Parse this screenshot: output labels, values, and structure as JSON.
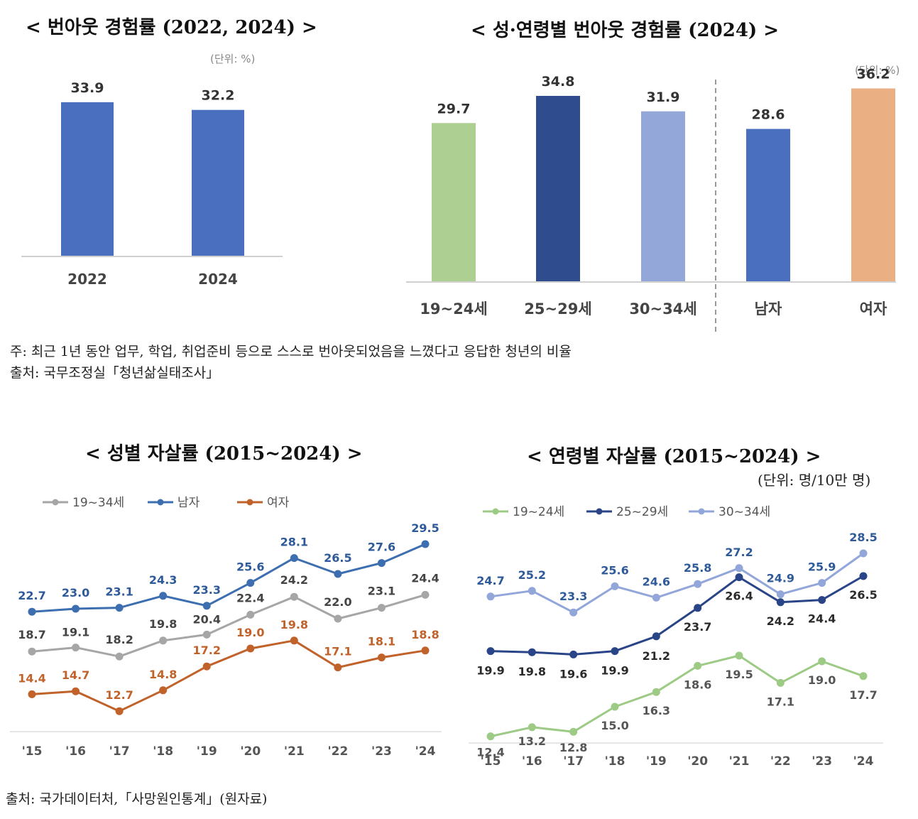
{
  "charts": [
    {
      "title": "< 번아웃 경험률 (2022, 2024) >",
      "unit": "(단위: %)",
      "chart_data": {
        "type": "bar",
        "categories": [
          "2022",
          "2024"
        ],
        "values": [
          33.9,
          32.2
        ],
        "colors": [
          "#4A6FBF",
          "#4A6FBF"
        ],
        "ylim": [
          0,
          40
        ]
      }
    },
    {
      "title": "< 성·연령별 번아웃 경험률 (2024) >",
      "unit": "(단위: %)",
      "chart_data": {
        "type": "bar",
        "categories": [
          "19~24세",
          "25~29세",
          "30~34세",
          "남자",
          "여자"
        ],
        "values": [
          29.7,
          34.8,
          31.9,
          28.6,
          36.2
        ],
        "colors": [
          "#ADCF92",
          "#2F4D8E",
          "#93A8D8",
          "#4A6FBF",
          "#EBAF84"
        ],
        "ylim": [
          0,
          40
        ]
      }
    },
    {
      "title": "< 성별 자살률 (2015~2024) >",
      "chart_data": {
        "type": "line",
        "categories": [
          "'15",
          "'16",
          "'17",
          "'18",
          "'19",
          "'20",
          "'21",
          "'22",
          "'23",
          "'24"
        ],
        "ylim": [
          10,
          31
        ],
        "legend_position": "top-left",
        "series": [
          {
            "name": "19~34세",
            "color": "#A6A6A6",
            "label_color": "#444444",
            "values": [
              18.7,
              19.1,
              18.2,
              19.8,
              20.4,
              22.4,
              24.2,
              22.0,
              23.1,
              24.4
            ]
          },
          {
            "name": "남자",
            "color": "#3D6EB0",
            "label_color": "#2E5A9A",
            "values": [
              22.7,
              23.0,
              23.1,
              24.3,
              23.3,
              25.6,
              28.1,
              26.5,
              27.6,
              29.5
            ]
          },
          {
            "name": "여자",
            "color": "#C0622A",
            "label_color": "#C0622A",
            "values": [
              14.4,
              14.7,
              12.7,
              14.8,
              17.2,
              19.0,
              19.8,
              17.1,
              18.1,
              18.8
            ]
          }
        ]
      }
    },
    {
      "title": "< 연령별 자살률 (2015~2024) >",
      "unit": "(단위: 명/10만 명)",
      "chart_data": {
        "type": "line",
        "categories": [
          "'15",
          "'16",
          "'17",
          "'18",
          "'19",
          "'20",
          "'21",
          "'22",
          "'23",
          "'24"
        ],
        "ylim": [
          10,
          30
        ],
        "legend_position": "top-left",
        "series": [
          {
            "name": "19~24세",
            "color": "#9DCB85",
            "label_color": "#555555",
            "values": [
              12.4,
              13.2,
              12.8,
              15.0,
              16.3,
              18.6,
              19.5,
              17.1,
              19.0,
              17.7
            ]
          },
          {
            "name": "25~29세",
            "color": "#2A4488",
            "label_color": "#2A2A2A",
            "values": [
              19.9,
              19.8,
              19.6,
              19.9,
              21.2,
              23.7,
              26.4,
              24.2,
              24.4,
              26.5
            ]
          },
          {
            "name": "30~34세",
            "color": "#92A6DA",
            "label_color": "#2E5A9A",
            "values": [
              24.7,
              25.2,
              23.3,
              25.6,
              24.6,
              25.8,
              27.2,
              24.9,
              25.9,
              28.5
            ]
          }
        ]
      }
    }
  ],
  "notes": {
    "burnout_note": "주: 최근 1년 동안 업무, 학업, 취업준비 등으로 스스로 번아웃되었음을 느꼈다고 응답한 청년의 비율",
    "burnout_source": "출처: 국무조정실「청년삶실태조사」",
    "suicide_source": "출처: 국가데이터처,「사망원인통계」(원자료)"
  }
}
